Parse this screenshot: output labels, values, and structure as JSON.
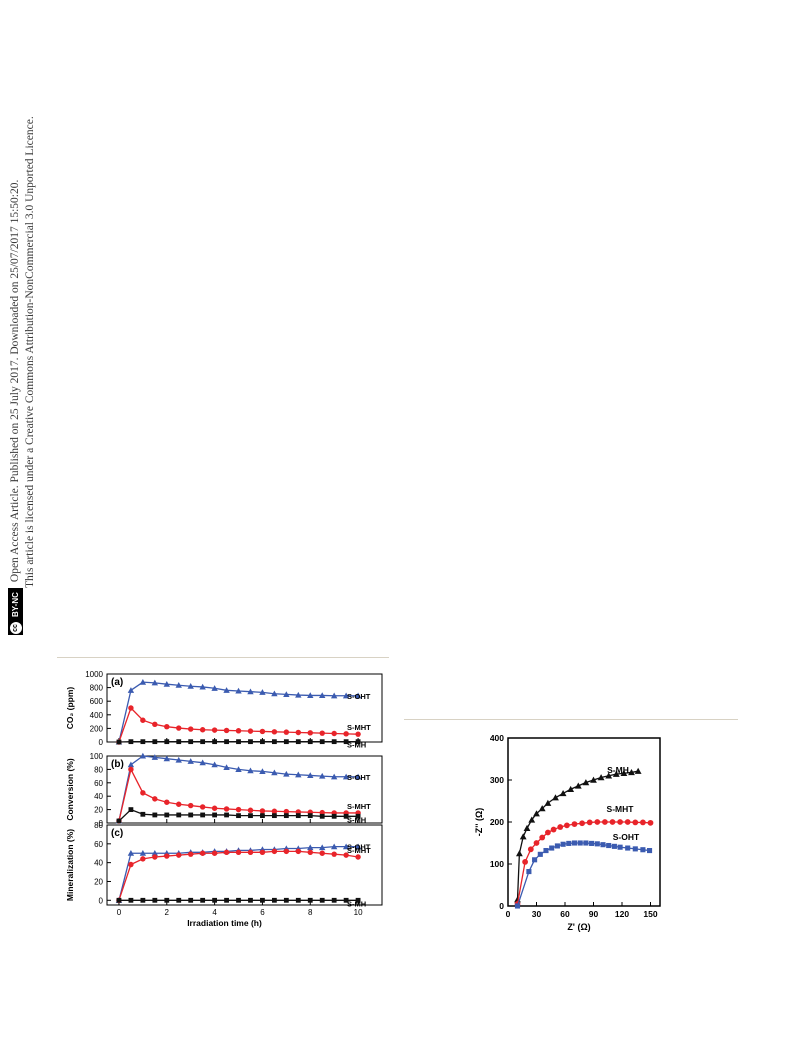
{
  "side_note": {
    "line1": "Open Access Article. Published on 25 July 2017. Downloaded on 25/07/2017 15:50:20.",
    "line2": "This article is licensed under a Creative Commons Attribution-NonCommercial 3.0 Unported Licence.",
    "badge_cc": "cc",
    "badge_by": "BY-NC"
  },
  "colors": {
    "S-MH": "#111111",
    "S-MHT": "#e8242a",
    "S-OHT": "#3b5bb0",
    "rule": "#d8d2c4"
  },
  "chart_data": [
    {
      "type": "line",
      "panel": "(a)",
      "ylabel": "CO₂ (ppm)",
      "xlabel": "",
      "xlim": [
        -0.5,
        11.0
      ],
      "ylim": [
        0,
        1000
      ],
      "xticks": [
        "0",
        "2",
        "4",
        "6",
        "8",
        "10"
      ],
      "yticks": [
        "0",
        "200",
        "400",
        "600",
        "800",
        "1000"
      ],
      "x": [
        0,
        0.5,
        1,
        1.5,
        2,
        2.5,
        3,
        3.5,
        4,
        4.5,
        5,
        5.5,
        6,
        6.5,
        7,
        7.5,
        8,
        8.5,
        9,
        9.5,
        10
      ],
      "series": [
        {
          "name": "S-OHT",
          "marker": "triangle",
          "values": [
            0,
            760,
            880,
            870,
            850,
            835,
            820,
            810,
            790,
            760,
            750,
            740,
            730,
            710,
            700,
            690,
            685,
            685,
            680,
            680,
            680
          ]
        },
        {
          "name": "S-MHT",
          "marker": "circle",
          "values": [
            0,
            500,
            320,
            260,
            225,
            205,
            190,
            180,
            175,
            170,
            165,
            160,
            155,
            150,
            145,
            140,
            135,
            130,
            125,
            120,
            115
          ]
        },
        {
          "name": "S-MH",
          "marker": "square",
          "values": [
            0,
            5,
            5,
            5,
            5,
            5,
            5,
            5,
            5,
            5,
            5,
            5,
            5,
            5,
            5,
            5,
            5,
            5,
            5,
            5,
            5
          ]
        }
      ]
    },
    {
      "type": "line",
      "panel": "(b)",
      "ylabel": "Conversion (%)",
      "xlabel": "",
      "xlim": [
        -0.5,
        11.0
      ],
      "ylim": [
        0,
        100
      ],
      "xticks": [
        "0",
        "2",
        "4",
        "6",
        "8",
        "10"
      ],
      "yticks": [
        "0",
        "20",
        "40",
        "60",
        "80",
        "100"
      ],
      "x": [
        0,
        0.5,
        1,
        1.5,
        2,
        2.5,
        3,
        3.5,
        4,
        4.5,
        5,
        5.5,
        6,
        6.5,
        7,
        7.5,
        8,
        8.5,
        9,
        9.5,
        10
      ],
      "series": [
        {
          "name": "S-OHT",
          "marker": "triangle",
          "values": [
            3,
            87,
            100,
            98,
            96,
            94,
            92,
            90,
            87,
            83,
            80,
            78,
            77,
            75,
            73,
            72,
            71,
            70,
            69,
            69,
            69
          ]
        },
        {
          "name": "S-MHT",
          "marker": "circle",
          "values": [
            3,
            80,
            45,
            36,
            31,
            28,
            26,
            24,
            22,
            21,
            20,
            19,
            18,
            17.5,
            17,
            16.5,
            16,
            15.5,
            15,
            15,
            15
          ]
        },
        {
          "name": "S-MH",
          "marker": "square",
          "values": [
            3,
            20,
            13,
            12,
            12,
            12,
            12,
            12,
            12,
            12,
            11,
            11,
            11,
            11,
            11,
            11,
            11,
            10,
            10,
            10,
            10
          ]
        }
      ]
    },
    {
      "type": "line",
      "panel": "(c)",
      "ylabel": "Mineralization (%)",
      "xlabel": "Irradiation time (h)",
      "xlim": [
        -0.5,
        11.0
      ],
      "ylim": [
        -5,
        80
      ],
      "xticks": [
        "0",
        "2",
        "4",
        "6",
        "8",
        "10"
      ],
      "yticks": [
        "0",
        "20",
        "40",
        "60",
        "80"
      ],
      "x": [
        0,
        0.5,
        1,
        1.5,
        2,
        2.5,
        3,
        3.5,
        4,
        4.5,
        5,
        5.5,
        6,
        6.5,
        7,
        7.5,
        8,
        8.5,
        9,
        9.5,
        10
      ],
      "series": [
        {
          "name": "S-OHT",
          "marker": "triangle",
          "values": [
            0,
            50,
            50,
            50,
            50,
            50,
            51,
            51,
            52,
            52,
            53,
            53,
            54,
            54,
            55,
            55,
            56,
            56,
            57,
            57,
            57
          ]
        },
        {
          "name": "S-MHT",
          "marker": "circle",
          "values": [
            0,
            38,
            44,
            46,
            47,
            48,
            49,
            50,
            50,
            51,
            51,
            51,
            51,
            52,
            52,
            52,
            51,
            50,
            49,
            48,
            46
          ]
        },
        {
          "name": "S-MH",
          "marker": "square",
          "values": [
            0,
            0,
            0,
            0,
            0,
            0,
            0,
            0,
            0,
            0,
            0,
            0,
            0,
            0,
            0,
            0,
            0,
            0,
            0,
            0,
            0
          ]
        }
      ]
    },
    {
      "type": "scatter",
      "panel": "",
      "xlabel": "Z' (Ω)",
      "ylabel": "-Z'' (Ω)",
      "xlim": [
        0,
        160
      ],
      "ylim": [
        0,
        400
      ],
      "xticks": [
        "0",
        "30",
        "60",
        "90",
        "120",
        "150"
      ],
      "yticks": [
        "0",
        "100",
        "200",
        "300",
        "400"
      ],
      "series": [
        {
          "name": "S-MH",
          "marker": "triangle",
          "points": [
            [
              10,
              15
            ],
            [
              12,
              125
            ],
            [
              16,
              165
            ],
            [
              20,
              185
            ],
            [
              25,
              205
            ],
            [
              30,
              220
            ],
            [
              36,
              232
            ],
            [
              42,
              245
            ],
            [
              50,
              258
            ],
            [
              58,
              268
            ],
            [
              66,
              278
            ],
            [
              74,
              286
            ],
            [
              82,
              294
            ],
            [
              90,
              300
            ],
            [
              98,
              306
            ],
            [
              106,
              310
            ],
            [
              114,
              314
            ],
            [
              122,
              316
            ],
            [
              130,
              318
            ],
            [
              137,
              321
            ]
          ]
        },
        {
          "name": "S-MHT",
          "marker": "circle",
          "points": [
            [
              10,
              5
            ],
            [
              18,
              105
            ],
            [
              24,
              135
            ],
            [
              30,
              150
            ],
            [
              36,
              163
            ],
            [
              42,
              175
            ],
            [
              48,
              182
            ],
            [
              55,
              188
            ],
            [
              62,
              192
            ],
            [
              70,
              195
            ],
            [
              78,
              197
            ],
            [
              86,
              199
            ],
            [
              94,
              200
            ],
            [
              102,
              200
            ],
            [
              110,
              200
            ],
            [
              118,
              200
            ],
            [
              126,
              200
            ],
            [
              134,
              199
            ],
            [
              142,
              199
            ],
            [
              150,
              198
            ]
          ]
        },
        {
          "name": "S-OHT",
          "marker": "square",
          "points": [
            [
              10,
              0
            ],
            [
              22,
              82
            ],
            [
              28,
              110
            ],
            [
              34,
              123
            ],
            [
              40,
              132
            ],
            [
              46,
              138
            ],
            [
              52,
              143
            ],
            [
              58,
              147
            ],
            [
              64,
              149
            ],
            [
              70,
              150
            ],
            [
              76,
              150
            ],
            [
              82,
              150
            ],
            [
              88,
              149
            ],
            [
              94,
              148
            ],
            [
              100,
              146
            ],
            [
              106,
              144
            ],
            [
              112,
              142
            ],
            [
              118,
              140
            ],
            [
              126,
              138
            ],
            [
              134,
              136
            ],
            [
              142,
              134
            ],
            [
              149,
              132
            ]
          ]
        }
      ]
    }
  ]
}
